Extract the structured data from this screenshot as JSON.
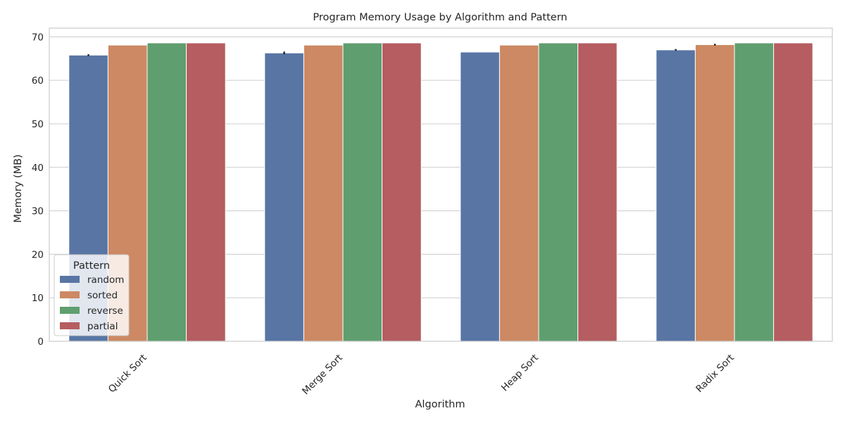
{
  "chart_data": {
    "type": "bar",
    "title": "Program Memory Usage by Algorithm and Pattern",
    "xlabel": "Algorithm",
    "ylabel": "Memory (MB)",
    "ylim": [
      0,
      72
    ],
    "yticks": [
      0,
      10,
      20,
      30,
      40,
      50,
      60,
      70
    ],
    "grid": "horizontal",
    "categories": [
      "Quick Sort",
      "Merge Sort",
      "Heap Sort",
      "Radix Sort"
    ],
    "series": [
      {
        "name": "random",
        "color": "#5875a4",
        "values": [
          65.8,
          66.3,
          66.5,
          67.0
        ],
        "error": [
          0.2,
          0.3,
          0.0,
          0.2
        ]
      },
      {
        "name": "sorted",
        "color": "#cc8963",
        "values": [
          68.1,
          68.1,
          68.1,
          68.2
        ],
        "error": [
          0.0,
          0.0,
          0.0,
          0.2
        ]
      },
      {
        "name": "reverse",
        "color": "#5f9e6e",
        "values": [
          68.6,
          68.6,
          68.6,
          68.6
        ],
        "error": [
          0.0,
          0.0,
          0.0,
          0.0
        ]
      },
      {
        "name": "partial",
        "color": "#b55d60",
        "values": [
          68.6,
          68.6,
          68.6,
          68.6
        ],
        "error": [
          0.0,
          0.0,
          0.0,
          0.0
        ]
      }
    ],
    "legend": {
      "title": "Pattern",
      "placement": "bottom-left"
    }
  }
}
